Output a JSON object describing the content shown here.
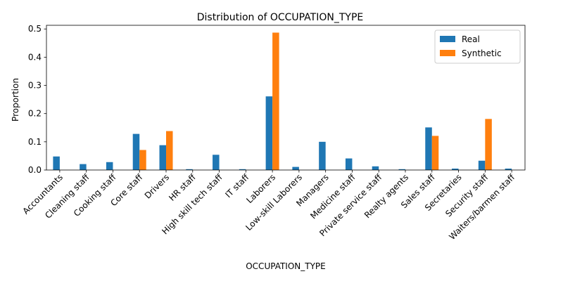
{
  "chart_data": {
    "type": "bar",
    "title": "Distribution of OCCUPATION_TYPE",
    "xlabel": "OCCUPATION_TYPE",
    "ylabel": "Proportion",
    "ylim": [
      0,
      0.513
    ],
    "yticks": [
      "0.0",
      "0.1",
      "0.2",
      "0.3",
      "0.4",
      "0.5"
    ],
    "grid": false,
    "legend_position": "top-right",
    "categories": [
      "Accountants",
      "Cleaning staff",
      "Cooking staff",
      "Core staff",
      "Drivers",
      "HR staff",
      "High skill tech staff",
      "IT staff",
      "Laborers",
      "Low-skill Laborers",
      "Managers",
      "Medicine staff",
      "Private service staff",
      "Realty agents",
      "Sales staff",
      "Secretaries",
      "Security staff",
      "Waiters/barmen staff"
    ],
    "series": [
      {
        "name": "Real",
        "color": "#1f77b4",
        "values": [
          0.048,
          0.021,
          0.028,
          0.128,
          0.088,
          0.003,
          0.054,
          0.003,
          0.261,
          0.011,
          0.1,
          0.041,
          0.013,
          0.003,
          0.151,
          0.005,
          0.033,
          0.005
        ]
      },
      {
        "name": "Synthetic",
        "color": "#ff7f0e",
        "values": [
          0,
          0,
          0,
          0.071,
          0.138,
          0,
          0,
          0,
          0.487,
          0,
          0,
          0,
          0,
          0,
          0.121,
          0,
          0.181,
          0
        ]
      }
    ]
  }
}
